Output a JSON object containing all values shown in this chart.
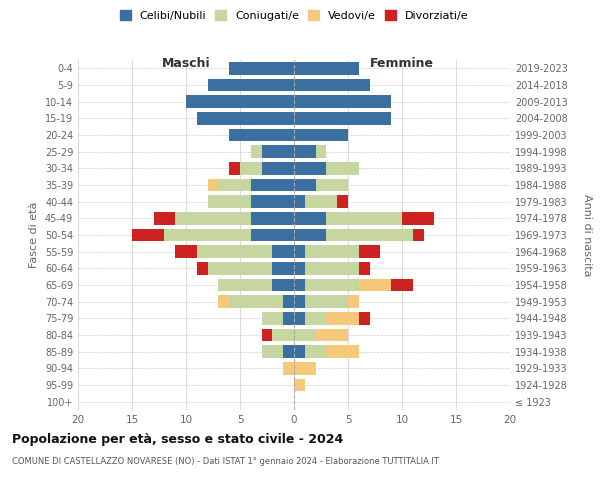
{
  "age_groups": [
    "100+",
    "95-99",
    "90-94",
    "85-89",
    "80-84",
    "75-79",
    "70-74",
    "65-69",
    "60-64",
    "55-59",
    "50-54",
    "45-49",
    "40-44",
    "35-39",
    "30-34",
    "25-29",
    "20-24",
    "15-19",
    "10-14",
    "5-9",
    "0-4"
  ],
  "birth_years": [
    "≤ 1923",
    "1924-1928",
    "1929-1933",
    "1934-1938",
    "1939-1943",
    "1944-1948",
    "1949-1953",
    "1954-1958",
    "1959-1963",
    "1964-1968",
    "1969-1973",
    "1974-1978",
    "1979-1983",
    "1984-1988",
    "1989-1993",
    "1994-1998",
    "1999-2003",
    "2004-2008",
    "2009-2013",
    "2014-2018",
    "2019-2023"
  ],
  "male": {
    "celibi": [
      0,
      0,
      0,
      1,
      0,
      1,
      1,
      2,
      2,
      2,
      4,
      4,
      4,
      4,
      3,
      3,
      6,
      9,
      10,
      8,
      6
    ],
    "coniugati": [
      0,
      0,
      0,
      2,
      2,
      2,
      5,
      5,
      6,
      7,
      8,
      7,
      4,
      3,
      2,
      1,
      0,
      0,
      0,
      0,
      0
    ],
    "vedovi": [
      0,
      0,
      1,
      0,
      0,
      0,
      1,
      0,
      0,
      0,
      0,
      0,
      0,
      1,
      0,
      0,
      0,
      0,
      0,
      0,
      0
    ],
    "divorziati": [
      0,
      0,
      0,
      0,
      1,
      0,
      0,
      0,
      1,
      2,
      3,
      2,
      0,
      0,
      1,
      0,
      0,
      0,
      0,
      0,
      0
    ]
  },
  "female": {
    "nubili": [
      0,
      0,
      0,
      1,
      0,
      1,
      1,
      1,
      1,
      1,
      3,
      3,
      1,
      2,
      3,
      2,
      5,
      9,
      9,
      7,
      6
    ],
    "coniugate": [
      0,
      0,
      0,
      2,
      2,
      2,
      4,
      5,
      5,
      5,
      8,
      7,
      3,
      3,
      3,
      1,
      0,
      0,
      0,
      0,
      0
    ],
    "vedove": [
      0,
      1,
      2,
      3,
      3,
      3,
      1,
      3,
      0,
      0,
      0,
      0,
      0,
      0,
      0,
      0,
      0,
      0,
      0,
      0,
      0
    ],
    "divorziate": [
      0,
      0,
      0,
      0,
      0,
      1,
      0,
      2,
      1,
      2,
      1,
      3,
      1,
      0,
      0,
      0,
      0,
      0,
      0,
      0,
      0
    ]
  },
  "colors": {
    "celibi": "#3B6FA0",
    "coniugati": "#C5D6A0",
    "vedovi": "#F5C97A",
    "divorziati": "#CC2222"
  },
  "xlim": 20,
  "title": "Popolazione per età, sesso e stato civile - 2024",
  "subtitle": "COMUNE DI CASTELLAZZO NOVARESE (NO) - Dati ISTAT 1° gennaio 2024 - Elaborazione TUTTITALIA.IT",
  "ylabel_left": "Fasce di età",
  "ylabel_right": "Anni di nascita",
  "xlabel_male": "Maschi",
  "xlabel_female": "Femmine",
  "legend_labels": [
    "Celibi/Nubili",
    "Coniugati/e",
    "Vedovi/e",
    "Divorziati/e"
  ],
  "bg_color": "#ffffff",
  "grid_color": "#cccccc",
  "tick_color": "#666666"
}
